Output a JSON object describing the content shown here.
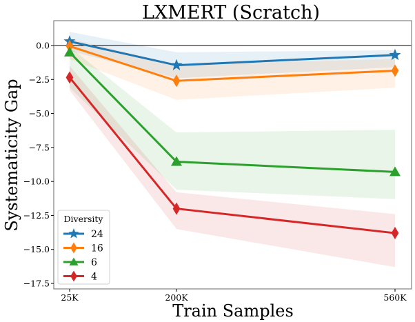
{
  "chart_data": {
    "type": "line",
    "title": "LXMERT (Scratch)",
    "xlabel": "Train Samples",
    "ylabel": "Systematicity Gap",
    "x": [
      "25K",
      "200K",
      "560K"
    ],
    "x_values": [
      25000,
      200000,
      560000
    ],
    "xticks": [
      "25K",
      "200K",
      "560K"
    ],
    "ylim": [
      -18.0,
      1.8
    ],
    "yticks": [
      0.0,
      -2.5,
      -5.0,
      -7.5,
      -10.0,
      -12.5,
      -15.0,
      -17.5
    ],
    "ytick_labels": [
      "0.0",
      "−2.5",
      "−5.0",
      "−7.5",
      "−10.0",
      "−12.5",
      "−15.0",
      "−17.5"
    ],
    "reference_line": 0.0,
    "grid": false,
    "legend": {
      "title": "Diversity",
      "placement": "lower-left"
    },
    "series": [
      {
        "name": "24",
        "color": "#1f77b4",
        "marker": "star",
        "values": [
          0.3,
          -1.45,
          -0.7
        ],
        "band_upper": [
          1.0,
          -0.5,
          -0.35
        ],
        "band_lower": [
          -0.4,
          -2.4,
          -1.6
        ]
      },
      {
        "name": "16",
        "color": "#ff7f0e",
        "marker": "thin-diamond",
        "values": [
          -0.05,
          -2.6,
          -1.85
        ],
        "band_upper": [
          0.5,
          -1.4,
          -1.0
        ],
        "band_lower": [
          -1.0,
          -4.0,
          -3.1
        ]
      },
      {
        "name": "6",
        "color": "#2ca02c",
        "marker": "triangle",
        "values": [
          -0.5,
          -8.55,
          -9.3
        ],
        "band_upper": [
          -0.1,
          -6.4,
          -6.2
        ],
        "band_lower": [
          -3.1,
          -10.6,
          -11.3
        ]
      },
      {
        "name": "4",
        "color": "#d62728",
        "marker": "thin-diamond",
        "values": [
          -2.35,
          -12.0,
          -13.8
        ],
        "band_upper": [
          -1.5,
          -10.8,
          -12.4
        ],
        "band_lower": [
          -3.3,
          -13.5,
          -16.3
        ]
      }
    ]
  }
}
